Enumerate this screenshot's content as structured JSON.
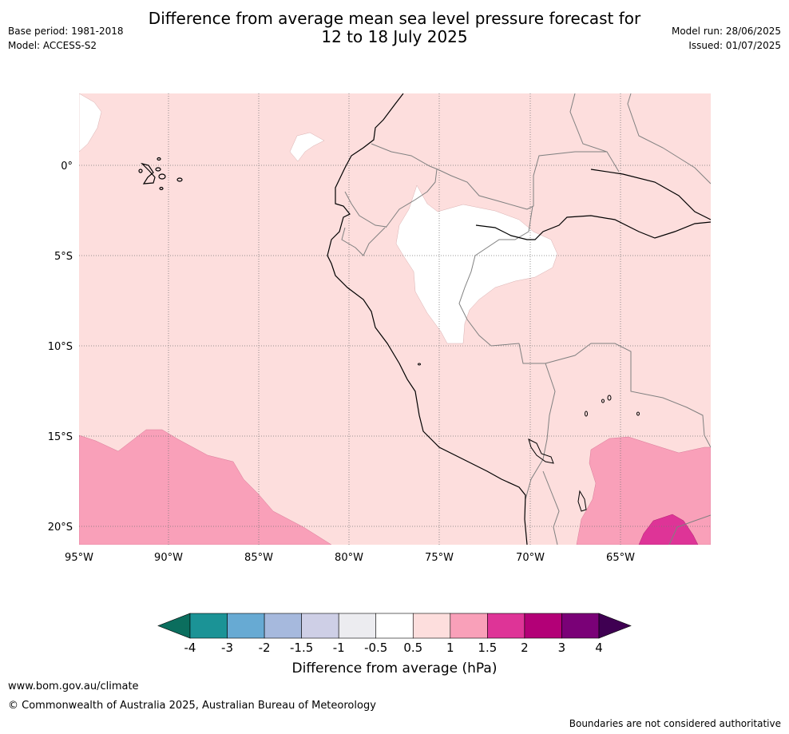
{
  "title": {
    "line1": "Difference from average mean sea level pressure forecast for",
    "line2": "12 to 18 July 2025"
  },
  "meta_left": {
    "base_period": "Base period: 1981-2018",
    "model": "Model: ACCESS-S2"
  },
  "meta_right": {
    "model_run": "Model run: 28/06/2025",
    "issued": "Issued: 01/07/2025"
  },
  "map": {
    "lon_ticks": [
      "95°W",
      "90°W",
      "85°W",
      "80°W",
      "75°W",
      "70°W",
      "65°W"
    ],
    "lat_ticks": [
      "0°",
      "5°S",
      "10°S",
      "15°S",
      "20°S"
    ],
    "background_class": "0.5 to 1",
    "colors": {
      "light_pink": "#fddedd",
      "white": "#ffffff",
      "pink": "#f9a0b9",
      "magenta": "#de3497",
      "gridline": "#777777",
      "coast": "#000000",
      "border": "#808080"
    }
  },
  "colorbar": {
    "label": "Difference from average (hPa)",
    "tick_labels": [
      "-4",
      "-3",
      "-2",
      "-1.5",
      "-1",
      "-0.5",
      "0.5",
      "1",
      "1.5",
      "2",
      "3",
      "4"
    ],
    "under_color": "#0b6e5e",
    "over_color": "#3f0052",
    "segments": [
      "#1b9396",
      "#67aad3",
      "#a6b9dd",
      "#cecfe6",
      "#ececf0",
      "#ffffff",
      "#fddedd",
      "#f9a0b9",
      "#de3497",
      "#b30077",
      "#7a0177"
    ]
  },
  "footer": {
    "url": "www.bom.gov.au/climate",
    "copyright": "© Commonwealth of Australia 2025, Australian Bureau of Meteorology",
    "disclaimer": "Boundaries are not considered authoritative"
  }
}
